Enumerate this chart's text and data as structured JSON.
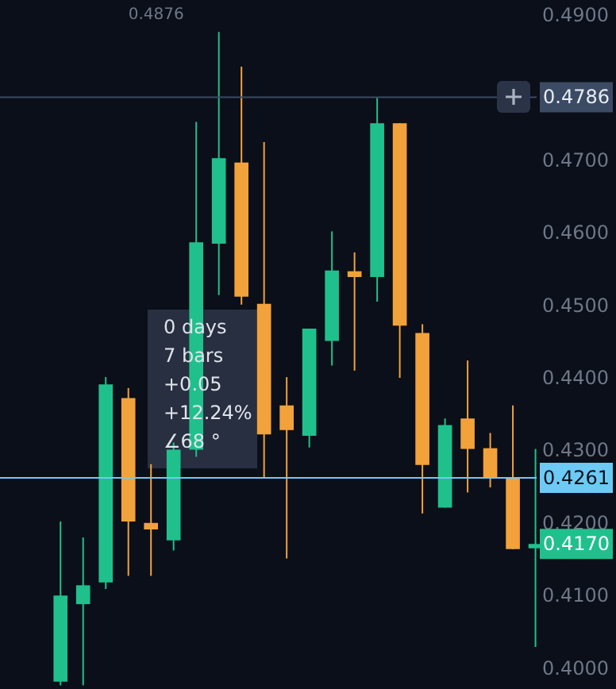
{
  "chart_data": {
    "type": "candlestick",
    "categories": [
      null,
      null,
      null,
      null,
      null,
      null,
      null,
      null,
      null,
      null,
      null,
      null,
      null,
      null,
      null,
      null,
      null,
      null,
      null,
      null,
      null,
      null
    ],
    "ohlc": [
      [
        0.398,
        0.4201,
        0.3975,
        0.4099
      ],
      [
        0.4087,
        0.4179,
        0.3975,
        0.4113
      ],
      [
        0.4117,
        0.44,
        0.4108,
        0.439
      ],
      [
        0.4371,
        0.4385,
        0.4126,
        0.4201
      ],
      [
        0.4199,
        0.428,
        0.4126,
        0.419
      ],
      [
        0.4175,
        0.431,
        0.4161,
        0.43
      ],
      [
        0.43,
        0.4752,
        0.429,
        0.4586
      ],
      [
        0.4584,
        0.4876,
        0.4513,
        0.4702
      ],
      [
        0.4696,
        0.4828,
        0.45,
        0.4511
      ],
      [
        0.4501,
        0.4724,
        0.4261,
        0.4321
      ],
      [
        0.4361,
        0.44,
        0.415,
        0.4327
      ],
      [
        0.4319,
        0.4467,
        0.4303,
        0.4467
      ],
      [
        0.445,
        0.4601,
        0.4416,
        0.4547
      ],
      [
        0.4546,
        0.4572,
        0.4409,
        0.4538
      ],
      [
        0.4538,
        0.4785,
        0.4504,
        0.475
      ],
      [
        0.475,
        0.475,
        0.4399,
        0.4471
      ],
      [
        0.4461,
        0.4473,
        0.4212,
        0.4279
      ],
      [
        0.422,
        0.4343,
        0.422,
        0.4334
      ],
      [
        0.4343,
        0.4423,
        0.4241,
        0.4301
      ],
      [
        0.4302,
        0.4323,
        0.4248,
        0.4261
      ],
      [
        0.4261,
        0.4361,
        0.4163,
        0.4163
      ],
      [
        0.4164,
        0.4301,
        0.4028,
        0.417
      ]
    ],
    "colors": [
      "#20c08c",
      "#20c08c",
      "#20c08c",
      "#f2a23a",
      "#f2a23a",
      "#20c08c",
      "#20c08c",
      "#20c08c",
      "#f2a23a",
      "#f2a23a",
      "#f2a23a",
      "#20c08c",
      "#20c08c",
      "#f2a23a",
      "#20c08c",
      "#f2a23a",
      "#f2a23a",
      "#20c08c",
      "#f2a23a",
      "#f2a23a",
      "#f2a23a",
      "#20c08c"
    ],
    "ylim": [
      0.397,
      0.492
    ],
    "yticks": [
      {
        "value": 0.4,
        "label": "0.4000"
      },
      {
        "value": 0.41,
        "label": "0.4100"
      },
      {
        "value": 0.42,
        "label": "0.4200"
      },
      {
        "value": 0.43,
        "label": "0.4300"
      },
      {
        "value": 0.44,
        "label": "0.4400"
      },
      {
        "value": 0.45,
        "label": "0.4500"
      },
      {
        "value": 0.46,
        "label": "0.4600"
      },
      {
        "value": 0.47,
        "label": "0.4700"
      },
      {
        "value": 0.49,
        "label": "0.4900"
      }
    ],
    "tick_labels": "y",
    "ref_lines": [
      {
        "axis": "y",
        "value": 0.4786,
        "label": "0.4786",
        "color": "#3c4b64"
      },
      {
        "axis": "y",
        "value": 0.4261,
        "label": "0.4261",
        "color": "#6ccaf5"
      }
    ],
    "annotations": [
      "0.4876",
      "0.4170",
      "0 days\n7 bars\n+0.05\n+12.24%\n∠68 °"
    ]
  }
}
